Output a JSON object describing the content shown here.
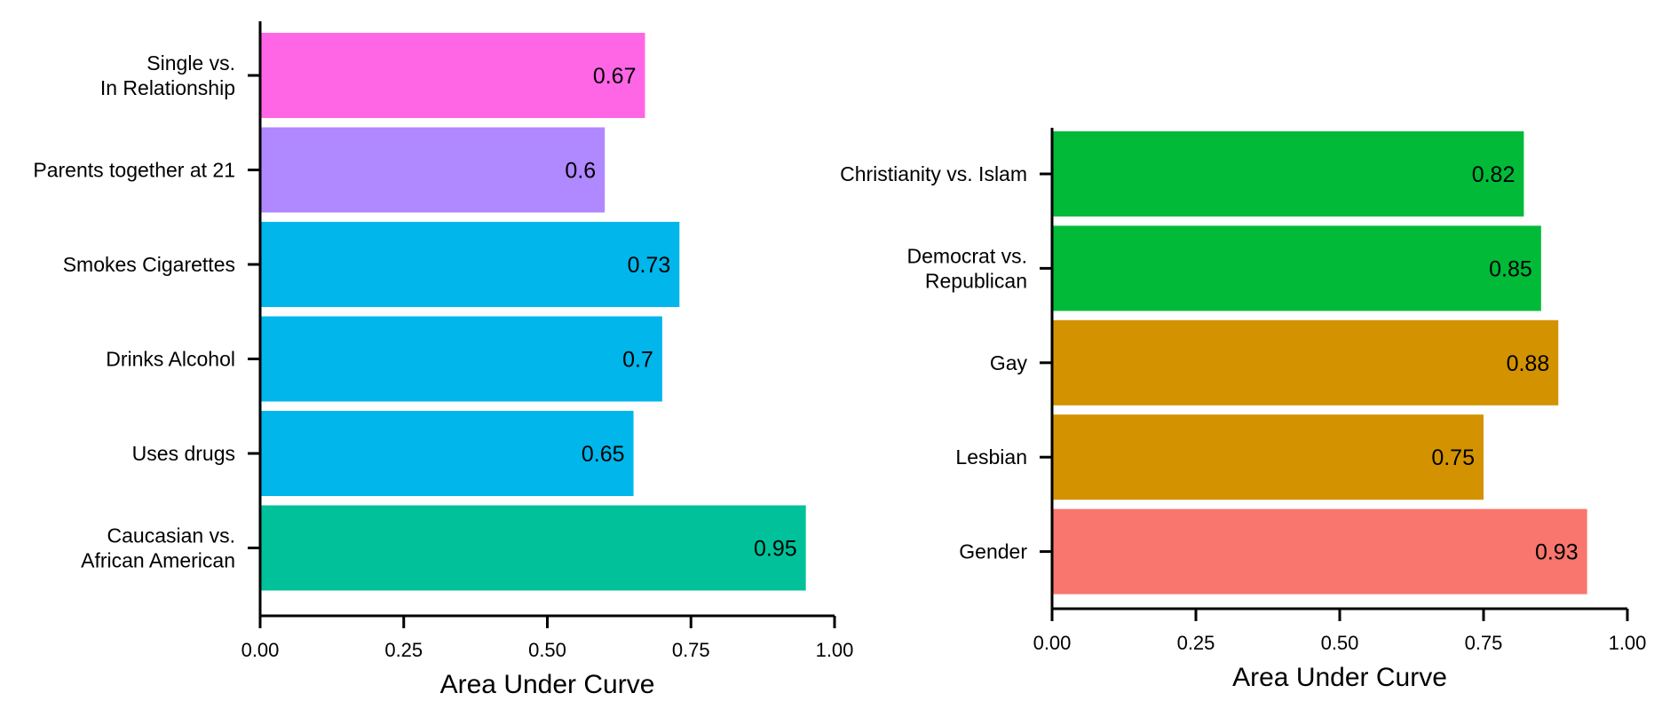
{
  "chart_data": [
    {
      "type": "bar",
      "orientation": "horizontal",
      "categories": [
        "Single vs.\nIn Relationship",
        "Parents together at 21",
        "Smokes Cigarettes",
        "Drinks Alcohol",
        "Uses drugs",
        "Caucasian vs.\nAfrican American"
      ],
      "values": [
        0.67,
        0.6,
        0.73,
        0.7,
        0.65,
        0.95
      ],
      "value_labels": [
        "0.67",
        "0.6",
        "0.73",
        "0.7",
        "0.65",
        "0.95"
      ],
      "colors": [
        "#FF66E6",
        "#B088FF",
        "#00B6EB",
        "#00B6EB",
        "#00B6EB",
        "#00C19A"
      ],
      "xlabel": "Area Under Curve",
      "xlim": [
        0,
        1
      ],
      "xticks": [
        0,
        0.25,
        0.5,
        0.75,
        1
      ],
      "xtick_labels": [
        "0.00",
        "0.25",
        "0.50",
        "0.75",
        "1.00"
      ],
      "grid": false,
      "legend": "none"
    },
    {
      "type": "bar",
      "orientation": "horizontal",
      "categories": [
        "Christianity vs. Islam",
        "Democrat vs.\nRepublican",
        "Gay",
        "Lesbian",
        "Gender"
      ],
      "values": [
        0.82,
        0.85,
        0.88,
        0.75,
        0.93
      ],
      "value_labels": [
        "0.82",
        "0.85",
        "0.88",
        "0.75",
        "0.93"
      ],
      "colors": [
        "#00BA38",
        "#00BA38",
        "#D39200",
        "#D39200",
        "#F8766D"
      ],
      "xlabel": "Area Under Curve",
      "xlim": [
        0,
        1
      ],
      "xticks": [
        0,
        0.25,
        0.5,
        0.75,
        1
      ],
      "xtick_labels": [
        "0.00",
        "0.25",
        "0.50",
        "0.75",
        "1.00"
      ],
      "grid": false,
      "legend": "none"
    }
  ]
}
